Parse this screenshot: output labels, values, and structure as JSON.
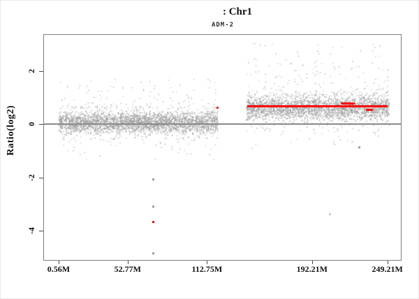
{
  "chart": {
    "title": ": Chr1",
    "subtitle": "ADM-2",
    "y_axis_title": "Ratio(log2)"
  },
  "chart_data": {
    "type": "scatter",
    "title": ": Chr1",
    "subtitle": "ADM-2",
    "ylabel": "Ratio(log2)",
    "xlabel": "",
    "x_unit": "Mb",
    "grid": false,
    "legend": "none",
    "x_range_m": [
      -10.5,
      259.4
    ],
    "y_range": [
      -5.09,
      3.35
    ],
    "x_axis": {
      "ticks": [
        {
          "m": 0.56,
          "label": "0.56M"
        },
        {
          "m": 52.77,
          "label": "52.77M"
        },
        {
          "m": 112.75,
          "label": "112.75M"
        },
        {
          "m": 192.21,
          "label": "192.21M"
        },
        {
          "m": 249.21,
          "label": "249.21M"
        }
      ]
    },
    "y_axis": {
      "ticks": [
        2,
        0,
        -2,
        -4
      ]
    },
    "zero_line_ratio": 0,
    "seed": 20240601,
    "point_color": "#9b9b9b",
    "call_color": "#fb0000",
    "zero_line_color": "#8a8a8a",
    "box_border_color": "#7d7d7d",
    "outlier_colors": {
      "gray": "#9e9e9e",
      "red": "#f40000",
      "lightgray": "#cccccc"
    },
    "clusters": [
      {
        "name": "chr1-p-arm-block",
        "x_start_m": 0.3,
        "x_end_m": 120.6,
        "n": 3000,
        "ratio_mean": 0.08,
        "ratio_sd": 0.21,
        "tail_up": {
          "n": 130,
          "min": 0.62,
          "max": 1.72
        },
        "tail_down": {
          "n": 62,
          "min": -1.32,
          "max": -0.5
        }
      },
      {
        "name": "chr1-q-arm-block",
        "x_start_m": 142.2,
        "x_end_m": 250.3,
        "n": 2600,
        "ratio_mean": 0.62,
        "ratio_sd": 0.24,
        "tail_up": {
          "n": 185,
          "min": 1.08,
          "max": 3.05
        },
        "tail_down": {
          "n": 55,
          "min": -0.92,
          "max": 0.02
        }
      }
    ],
    "segments": [
      {
        "name": "gain-call-main",
        "x_start_m": 143.4,
        "x_end_m": 249.6,
        "ratio": 0.675
      },
      {
        "name": "gain-call-upper",
        "x_start_m": 214.0,
        "x_end_m": 224.5,
        "ratio": 0.785
      },
      {
        "name": "gain-call-lower",
        "x_start_m": 233.0,
        "x_end_m": 238.5,
        "ratio": 0.53
      },
      {
        "name": "gain-call-p-terminal",
        "x_start_m": 119.7,
        "x_end_m": 121.7,
        "ratio": 0.615
      }
    ],
    "outlier_points": [
      {
        "x_m": 72.0,
        "ratio": -2.08,
        "color": "gray"
      },
      {
        "x_m": 72.0,
        "ratio": -3.08,
        "color": "gray"
      },
      {
        "x_m": 72.0,
        "ratio": -3.66,
        "color": "red"
      },
      {
        "x_m": 72.0,
        "ratio": -4.85,
        "color": "gray"
      },
      {
        "x_m": 228.2,
        "ratio": -0.88,
        "color": "gray"
      },
      {
        "x_m": 205.8,
        "ratio": -3.38,
        "color": "lightgray"
      }
    ]
  }
}
